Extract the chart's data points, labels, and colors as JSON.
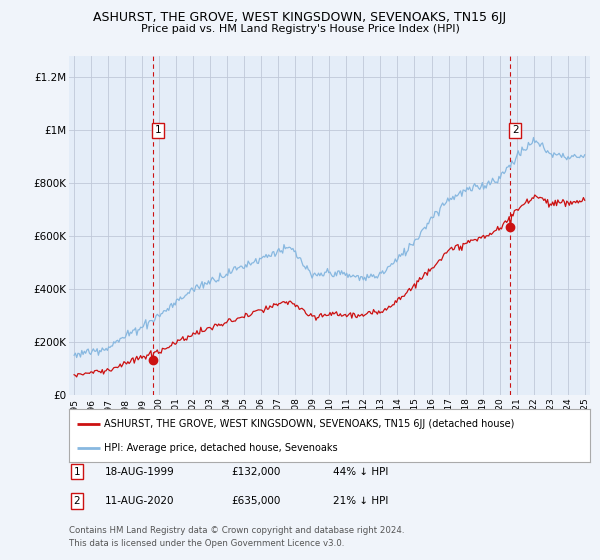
{
  "title": "ASHURST, THE GROVE, WEST KINGSDOWN, SEVENOAKS, TN15 6JJ",
  "subtitle": "Price paid vs. HM Land Registry's House Price Index (HPI)",
  "background_color": "#f0f4fa",
  "plot_bg_color": "#e4edf8",
  "hpi_color": "#88b8e0",
  "price_color": "#cc1111",
  "marker1_year": 1999.62,
  "marker1_price": 132000,
  "marker1_label": "1",
  "marker2_year": 2020.62,
  "marker2_price": 635000,
  "marker2_label": "2",
  "ylabel_ticks": [
    "£0",
    "£200K",
    "£400K",
    "£600K",
    "£800K",
    "£1M",
    "£1.2M"
  ],
  "ylabel_values": [
    0,
    200000,
    400000,
    600000,
    800000,
    1000000,
    1200000
  ],
  "ymax": 1280000,
  "xmin": 1994.7,
  "xmax": 2025.3,
  "xticks": [
    1995,
    1996,
    1997,
    1998,
    1999,
    2000,
    2001,
    2002,
    2003,
    2004,
    2005,
    2006,
    2007,
    2008,
    2009,
    2010,
    2011,
    2012,
    2013,
    2014,
    2015,
    2016,
    2017,
    2018,
    2019,
    2020,
    2021,
    2022,
    2023,
    2024,
    2025
  ],
  "legend_line1": "ASHURST, THE GROVE, WEST KINGSDOWN, SEVENOAKS, TN15 6JJ (detached house)",
  "legend_line2": "HPI: Average price, detached house, Sevenoaks",
  "footnote1": "Contains HM Land Registry data © Crown copyright and database right 2024.",
  "footnote2": "This data is licensed under the Open Government Licence v3.0.",
  "table": [
    {
      "num": "1",
      "date": "18-AUG-1999",
      "price": "£132,000",
      "note": "44% ↓ HPI"
    },
    {
      "num": "2",
      "date": "11-AUG-2020",
      "price": "£635,000",
      "note": "21% ↓ HPI"
    }
  ]
}
